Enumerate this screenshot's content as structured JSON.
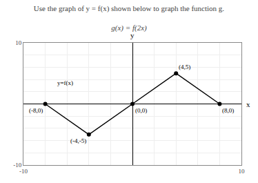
{
  "chart_data": {
    "type": "line",
    "title": "Use the graph of y = f(x) shown below to graph the function g.",
    "subtitle": "g(x) = f(2x)",
    "xlabel": "x",
    "ylabel": "y",
    "x": [
      -8,
      -4,
      0,
      4,
      8
    ],
    "values": [
      0,
      -5,
      0,
      5,
      0
    ],
    "color": "#000000",
    "marker": "circle",
    "point_labels": [
      {
        "text": "(-8,0)",
        "x": -8,
        "y": 0
      },
      {
        "text": "(-4,-5)",
        "x": -4,
        "y": -5
      },
      {
        "text": "(0,0)",
        "x": 0,
        "y": 0
      },
      {
        "text": "(4,5)",
        "x": 4,
        "y": 5
      },
      {
        "text": "(8,0)",
        "x": 8,
        "y": 0
      }
    ],
    "curve_label": {
      "text": "y=f(x)",
      "x": -7,
      "y": 3.5
    },
    "xlim": [
      -10,
      10
    ],
    "ylim": [
      -10,
      10
    ],
    "xticks": [
      -10,
      {
        "value": -8,
        "label": null
      },
      {
        "value": -6,
        "label": null
      },
      {
        "value": -4,
        "label": null
      },
      {
        "value": -2,
        "label": null
      },
      {
        "value": 0,
        "label": null
      },
      {
        "value": 2,
        "label": null
      },
      {
        "value": 4,
        "label": null
      },
      {
        "value": 6,
        "label": null
      },
      {
        "value": 8,
        "label": null
      },
      10
    ],
    "yticks": [
      -10,
      {
        "value": -8,
        "label": null
      },
      {
        "value": -6,
        "label": null
      },
      {
        "value": -4,
        "label": null
      },
      {
        "value": -2,
        "label": null
      },
      {
        "value": 0,
        "label": null
      },
      {
        "value": 2,
        "label": null
      },
      {
        "value": 4,
        "label": null
      },
      {
        "value": 6,
        "label": null
      },
      {
        "value": 8,
        "label": null
      },
      10
    ],
    "grid": true
  }
}
